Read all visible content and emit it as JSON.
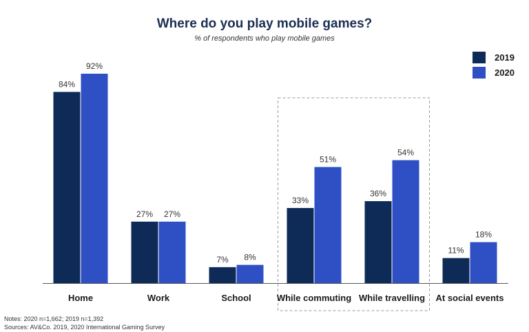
{
  "chart_data": {
    "type": "bar",
    "title": "Where do you play mobile games?",
    "subtitle": "% of respondents who play mobile games",
    "categories": [
      "Home",
      "Work",
      "School",
      "While commuting",
      "While travelling",
      "At social events"
    ],
    "series": [
      {
        "name": "2019",
        "values": [
          84,
          27,
          7,
          33,
          36,
          11
        ],
        "labels": [
          "84%",
          "27%",
          "7%",
          "33%",
          "36%",
          "11%"
        ],
        "color": "#0e2b57"
      },
      {
        "name": "2020",
        "values": [
          92,
          27,
          8,
          51,
          54,
          18
        ],
        "labels": [
          "92%",
          "27%",
          "8%",
          "51%",
          "54%",
          "18%"
        ],
        "color": "#2f4fc4"
      }
    ],
    "ylim": [
      0,
      92
    ],
    "grid": false,
    "legend_position": "top-right",
    "highlight_categories": [
      "While commuting",
      "While travelling"
    ]
  },
  "notes": {
    "line1": "Notes: 2020 n=1,662; 2019 n=1,392",
    "line2": "Sources: AV&Co. 2019, 2020 International Gaming Survey"
  }
}
